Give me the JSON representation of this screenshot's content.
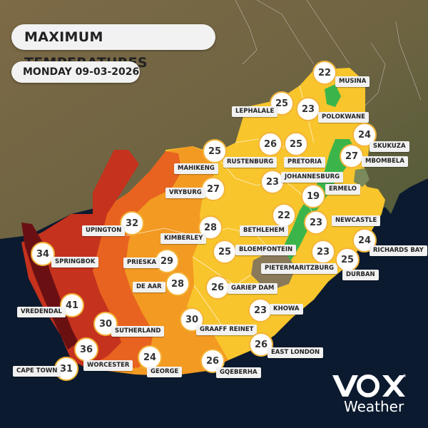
{
  "header": {
    "title": "MAXIMUM TEMPERATURES",
    "date": "MONDAY 09-03-2026"
  },
  "logo": {
    "wordmark": "VOX",
    "reg": "®",
    "sub": "Weather"
  },
  "legend_colors": {
    "green": "#3bb54a",
    "yellow": "#f8c52c",
    "orange": "#f39a22",
    "dark_orange": "#e8631f",
    "red": "#c5321d",
    "dark_red": "#6a1013"
  },
  "cities": [
    {
      "name": "MUSINA",
      "temp": "22"
    },
    {
      "name": "LEPHALALE",
      "temp": "25"
    },
    {
      "name": "POLOKWANE",
      "temp": "23"
    },
    {
      "name": "SKUKUZA",
      "temp": "24"
    },
    {
      "name": "MBOMBELA",
      "temp": "27"
    },
    {
      "name": "RUSTENBURG",
      "temp": "26"
    },
    {
      "name": "PRETORIA",
      "temp": "25"
    },
    {
      "name": "MAHIKENG",
      "temp": "25"
    },
    {
      "name": "JOHANNESBURG",
      "temp": "23"
    },
    {
      "name": "ERMELO",
      "temp": "19"
    },
    {
      "name": "VRYBURG",
      "temp": "27"
    },
    {
      "name": "UPINGTON",
      "temp": "32"
    },
    {
      "name": "KIMBERLEY",
      "temp": "28"
    },
    {
      "name": "BETHLEHEM",
      "temp": "22"
    },
    {
      "name": "NEWCASTLE",
      "temp": "23"
    },
    {
      "name": "RICHARDS BAY",
      "temp": "24"
    },
    {
      "name": "SPRINGBOK",
      "temp": "34"
    },
    {
      "name": "PRIESKA",
      "temp": "29"
    },
    {
      "name": "BLOEMFONTEIN",
      "temp": "25"
    },
    {
      "name": "PIETERMARITZBURG",
      "temp": "23"
    },
    {
      "name": "DURBAN",
      "temp": "25"
    },
    {
      "name": "DE AAR",
      "temp": "28"
    },
    {
      "name": "GARIEP DAM",
      "temp": "26"
    },
    {
      "name": "VREDENDAL",
      "temp": "41"
    },
    {
      "name": "KHOWA",
      "temp": "23"
    },
    {
      "name": "SUTHERLAND",
      "temp": "30"
    },
    {
      "name": "GRAAFF REINET",
      "temp": "30"
    },
    {
      "name": "EAST LONDON",
      "temp": "26"
    },
    {
      "name": "WORCESTER",
      "temp": "36"
    },
    {
      "name": "GEORGE",
      "temp": "24"
    },
    {
      "name": "GQEBERHA",
      "temp": "26"
    },
    {
      "name": "CAPE TOWN",
      "temp": "31"
    }
  ]
}
